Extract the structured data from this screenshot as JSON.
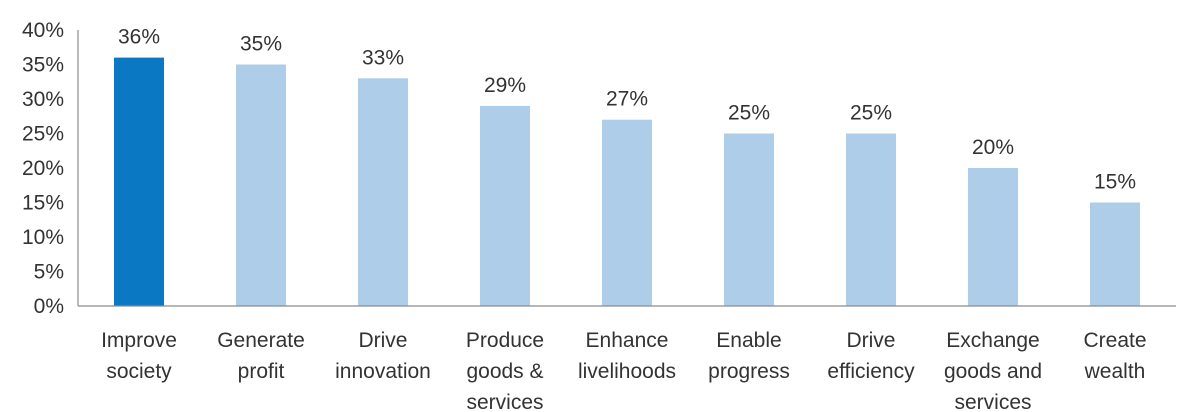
{
  "chart_data": {
    "type": "bar",
    "title": "",
    "xlabel": "",
    "ylabel": "",
    "ylim": [
      0,
      40
    ],
    "yticks": [
      "0%",
      "5%",
      "10%",
      "15%",
      "20%",
      "25%",
      "30%",
      "35%",
      "40%"
    ],
    "grid": false,
    "legend": "none",
    "categories": [
      [
        "Improve",
        "society"
      ],
      [
        "Generate",
        "profit"
      ],
      [
        "Drive",
        "innovation"
      ],
      [
        "Produce",
        "goods &",
        "services"
      ],
      [
        "Enhance",
        "livelihoods"
      ],
      [
        "Enable",
        "progress"
      ],
      [
        "Drive",
        "efficiency"
      ],
      [
        "Exchange",
        "goods and",
        "services"
      ],
      [
        "Create",
        "wealth"
      ]
    ],
    "values": [
      36,
      35,
      33,
      29,
      27,
      25,
      25,
      20,
      15
    ],
    "data_labels": [
      "36%",
      "35%",
      "33%",
      "29%",
      "27%",
      "25%",
      "25%",
      "20%",
      "15%"
    ],
    "highlight_index": 0,
    "colors": {
      "highlight": "#0a78c2",
      "bar": "#aecde9",
      "axis": "#8c8c8c",
      "text": "#333333"
    }
  }
}
